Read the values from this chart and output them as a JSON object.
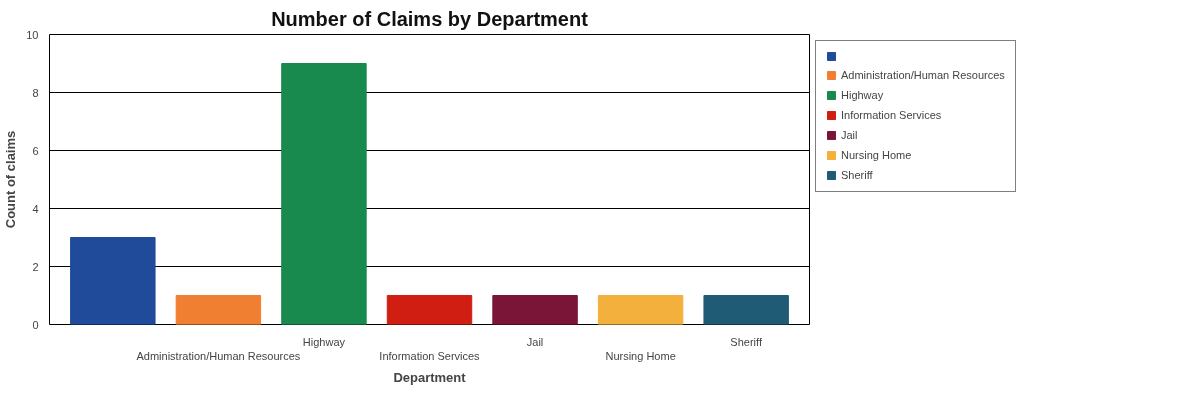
{
  "chart_data": {
    "type": "bar",
    "title": "Number of Claims by Department",
    "xlabel": "Department",
    "ylabel": "Count of claims",
    "categories": [
      null,
      "Administration/Human Resources",
      "Highway",
      "Information Services",
      "Jail",
      "Nursing Home",
      "Sheriff"
    ],
    "series": [
      {
        "color": "#1f4b9a",
        "values": [
          3,
          null,
          null,
          null,
          null,
          null,
          null
        ]
      },
      {
        "name": "Administration/Human Resources",
        "color": "#f07f32",
        "values": [
          null,
          1,
          null,
          null,
          null,
          null,
          null
        ]
      },
      {
        "name": "Highway",
        "color": "#188a4e",
        "values": [
          null,
          null,
          9,
          null,
          null,
          null,
          null
        ]
      },
      {
        "name": "Information Services",
        "color": "#d01e12",
        "values": [
          null,
          null,
          null,
          1,
          null,
          null,
          null
        ]
      },
      {
        "name": "Jail",
        "color": "#7a1538",
        "values": [
          null,
          null,
          null,
          null,
          1,
          null,
          null
        ]
      },
      {
        "name": "Nursing Home",
        "color": "#f3b03d",
        "values": [
          null,
          null,
          null,
          null,
          null,
          1,
          null
        ]
      },
      {
        "name": "Sheriff",
        "color": "#1f5b74",
        "values": [
          null,
          null,
          null,
          null,
          null,
          null,
          1
        ]
      }
    ],
    "ylim": [
      0,
      10
    ],
    "yticks": [
      0,
      2,
      4,
      6,
      8,
      10
    ],
    "grid": "y",
    "legend": "right"
  }
}
